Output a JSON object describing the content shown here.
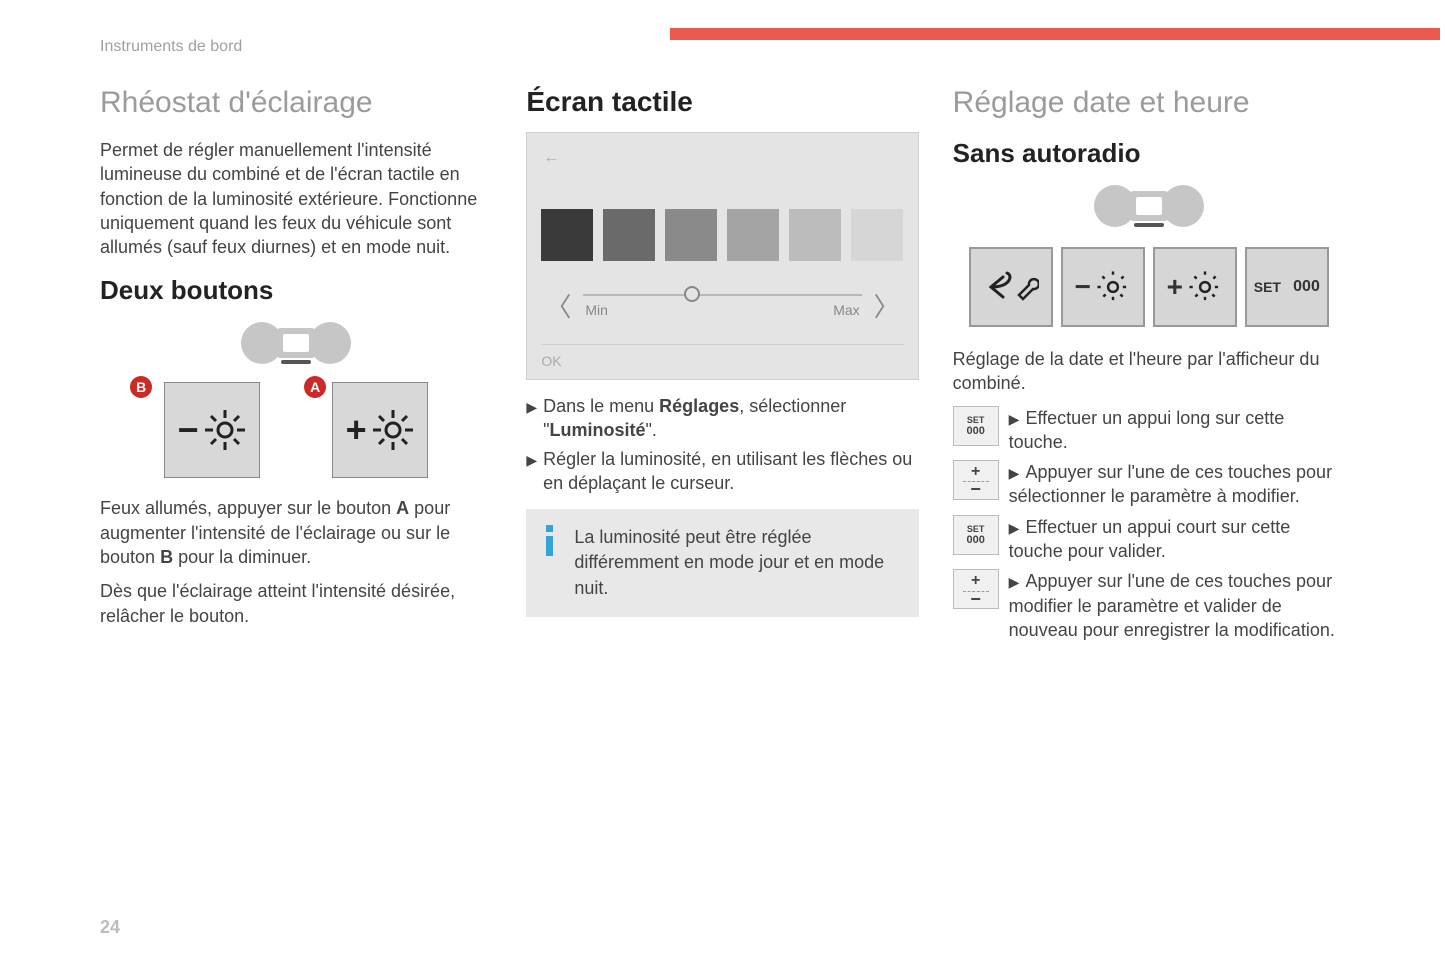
{
  "breadcrumb": "Instruments de bord",
  "page_number": "24",
  "accent_color": "#ea5a4d",
  "col1": {
    "title": "Rhéostat d'éclairage",
    "intro": "Permet de régler manuellement l'intensité lumineuse du combiné et de l'écran tactile en fonction de la luminosité extérieure. Fonctionne uniquement quand les feux du véhicule sont allumés (sauf feux diurnes) et en mode nuit.",
    "subtitle": "Deux boutons",
    "badge_b": "B",
    "badge_a": "A",
    "body2_part1": "Feux allumés, appuyer sur le bouton ",
    "body2_A": "A",
    "body2_part2": " pour augmenter l'intensité de l'éclairage ou sur le bouton ",
    "body2_B": "B",
    "body2_part3": " pour la diminuer.",
    "body3": "Dès que l'éclairage atteint l'intensité désirée, relâcher le bouton."
  },
  "col2": {
    "title": "Écran tactile",
    "ts_back": "←",
    "swatch_colors": [
      "#3a3a3a",
      "#6a6a6a",
      "#8a8a8a",
      "#a4a4a4",
      "#bcbcbc",
      "#d6d6d6"
    ],
    "slider_min": "Min",
    "slider_max": "Max",
    "ts_ok": "OK",
    "step1_pre": "Dans le menu ",
    "step1_bold": "Réglages",
    "step1_post": ", sélectionner \"",
    "step1_bold2": "Luminosité",
    "step1_end": "\".",
    "step2": "Régler la luminosité, en utilisant les flèches ou en déplaçant le curseur.",
    "info": "La luminosité peut être réglée différemment en mode jour et en mode nuit."
  },
  "col3": {
    "title": "Réglage date et heure",
    "subtitle": "Sans autoradio",
    "btn_set": "SET",
    "btn_000": "000",
    "intro": "Réglage de la date et l'heure par l'afficheur du combiné.",
    "steps": [
      {
        "icon": "set",
        "text": "Effectuer un appui long sur cette touche."
      },
      {
        "icon": "pm",
        "text": "Appuyer sur l'une de ces touches pour sélectionner le paramètre à modifier."
      },
      {
        "icon": "set",
        "text": "Effectuer un appui court sur cette touche pour valider."
      },
      {
        "icon": "pm",
        "text": "Appuyer sur l'une de ces touches pour modifier le paramètre et valider de nouveau pour enregistrer la modification."
      }
    ]
  }
}
